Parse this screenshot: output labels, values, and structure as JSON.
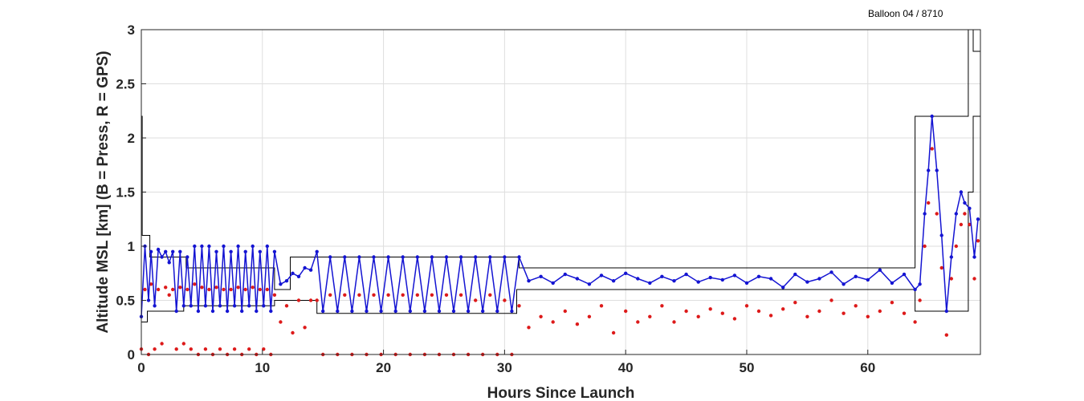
{
  "chart_data": {
    "type": "scatter",
    "title": "",
    "corner_label": "Balloon 04 / 8710",
    "xlabel": "Hours Since Launch",
    "ylabel": "Altitude MSL [km]    (B = Press, R = GPS)",
    "xlim": [
      0,
      69.3
    ],
    "ylim": [
      0,
      3
    ],
    "xticks": [
      0,
      10,
      20,
      30,
      40,
      50,
      60
    ],
    "yticks": [
      0,
      0.5,
      1,
      1.5,
      2,
      2.5,
      3
    ],
    "xtick_labels": [
      "0",
      "10",
      "20",
      "30",
      "40",
      "50",
      "60"
    ],
    "ytick_labels": [
      "0",
      "0.5",
      "1",
      "1.5",
      "2",
      "2.5",
      "3"
    ],
    "grid": true,
    "colors": {
      "pressure": "#1414d2",
      "gps": "#dd1a1a",
      "envelope": "#000000",
      "grid": "#dedede",
      "axis": "#262626"
    },
    "envelope": {
      "upper": [
        [
          0,
          2.2
        ],
        [
          0.07,
          2.2
        ],
        [
          0.07,
          1.1
        ],
        [
          0.7,
          1.1
        ],
        [
          0.7,
          0.9
        ],
        [
          3.7,
          0.9
        ],
        [
          3.7,
          0.8
        ],
        [
          11,
          0.8
        ],
        [
          11,
          0.6
        ],
        [
          12.3,
          0.6
        ],
        [
          12.3,
          0.9
        ],
        [
          31.2,
          0.9
        ],
        [
          31.2,
          0.8
        ],
        [
          63.9,
          0.8
        ],
        [
          63.9,
          2.2
        ],
        [
          68.3,
          2.2
        ],
        [
          68.3,
          3
        ]
      ],
      "lower": [
        [
          0,
          0.3
        ],
        [
          0.5,
          0.3
        ],
        [
          0.5,
          0.4
        ],
        [
          3.5,
          0.4
        ],
        [
          3.5,
          0.45
        ],
        [
          11,
          0.45
        ],
        [
          11,
          0.5
        ],
        [
          14.5,
          0.5
        ],
        [
          14.5,
          0.38
        ],
        [
          31,
          0.38
        ],
        [
          31,
          0.6
        ],
        [
          63.9,
          0.6
        ],
        [
          63.9,
          0.4
        ],
        [
          68.3,
          0.4
        ],
        [
          68.3,
          1.5
        ],
        [
          68.7,
          1.5
        ],
        [
          68.7,
          2.2
        ],
        [
          69.3,
          2.2
        ]
      ],
      "extra": [
        [
          68.7,
          3
        ],
        [
          68.7,
          2.8
        ],
        [
          69.3,
          2.8
        ]
      ]
    },
    "series": [
      {
        "key": "pressure",
        "x": [
          0,
          0.3,
          0.6,
          0.8,
          1.1,
          1.4,
          1.7,
          2.0,
          2.3,
          2.6,
          2.9,
          3.2,
          3.5,
          3.8,
          4.1,
          4.4,
          4.7,
          5.0,
          5.3,
          5.6,
          5.9,
          6.2,
          6.5,
          6.8,
          7.1,
          7.4,
          7.7,
          8.0,
          8.3,
          8.6,
          8.9,
          9.2,
          9.5,
          9.8,
          10.1,
          10.4,
          10.7,
          11.0,
          11.5,
          12.0,
          12.5,
          13.0,
          13.5,
          14.0,
          14.5,
          15.0,
          15.6,
          16.2,
          16.8,
          17.4,
          18.0,
          18.6,
          19.2,
          19.8,
          20.4,
          21.0,
          21.6,
          22.2,
          22.8,
          23.4,
          24.0,
          24.6,
          25.2,
          25.8,
          26.4,
          27.0,
          27.6,
          28.2,
          28.8,
          29.4,
          30.0,
          30.6,
          31.2,
          32.0,
          33.0,
          34.0,
          35.0,
          36.0,
          37.0,
          38.0,
          39.0,
          40.0,
          41.0,
          42.0,
          43.0,
          44.0,
          45.0,
          46.0,
          47.0,
          48.0,
          49.0,
          50.0,
          51.0,
          52.0,
          53.0,
          54.0,
          55.0,
          56.0,
          57.0,
          58.0,
          59.0,
          60.0,
          61.0,
          62.0,
          63.0,
          63.9,
          64.3,
          64.7,
          65.0,
          65.3,
          65.7,
          66.1,
          66.5,
          66.9,
          67.3,
          67.7,
          68.0,
          68.4,
          68.8,
          69.1
        ],
        "y": [
          0.35,
          1.0,
          0.5,
          0.95,
          0.45,
          0.97,
          0.9,
          0.95,
          0.85,
          0.95,
          0.4,
          0.95,
          0.45,
          0.9,
          0.45,
          1.0,
          0.4,
          1.0,
          0.45,
          1.0,
          0.4,
          0.95,
          0.45,
          1.0,
          0.4,
          0.95,
          0.45,
          1.0,
          0.4,
          0.95,
          0.45,
          1.0,
          0.4,
          0.95,
          0.45,
          1.0,
          0.4,
          0.95,
          0.65,
          0.68,
          0.75,
          0.72,
          0.8,
          0.78,
          0.95,
          0.4,
          0.9,
          0.4,
          0.9,
          0.4,
          0.9,
          0.4,
          0.9,
          0.4,
          0.9,
          0.4,
          0.9,
          0.4,
          0.9,
          0.4,
          0.9,
          0.4,
          0.9,
          0.4,
          0.9,
          0.4,
          0.9,
          0.4,
          0.9,
          0.4,
          0.9,
          0.4,
          0.9,
          0.68,
          0.72,
          0.66,
          0.74,
          0.7,
          0.65,
          0.73,
          0.68,
          0.75,
          0.7,
          0.66,
          0.72,
          0.68,
          0.74,
          0.67,
          0.71,
          0.69,
          0.73,
          0.66,
          0.72,
          0.7,
          0.62,
          0.74,
          0.67,
          0.7,
          0.76,
          0.65,
          0.72,
          0.69,
          0.78,
          0.66,
          0.74,
          0.6,
          0.65,
          1.3,
          1.7,
          2.2,
          1.7,
          1.1,
          0.4,
          0.9,
          1.3,
          1.5,
          1.4,
          1.35,
          0.9,
          1.25
        ]
      },
      {
        "key": "gps",
        "x": [
          0,
          0.3,
          0.6,
          0.8,
          1.1,
          1.4,
          1.7,
          2.0,
          2.3,
          2.6,
          2.9,
          3.2,
          3.5,
          3.8,
          4.1,
          4.4,
          4.7,
          5.0,
          5.3,
          5.6,
          5.9,
          6.2,
          6.5,
          6.8,
          7.1,
          7.4,
          7.7,
          8.0,
          8.3,
          8.6,
          8.9,
          9.2,
          9.5,
          9.8,
          10.1,
          10.4,
          10.7,
          11.0,
          11.5,
          12.0,
          12.5,
          13.0,
          13.5,
          14.0,
          14.5,
          15.0,
          15.6,
          16.2,
          16.8,
          17.4,
          18.0,
          18.6,
          19.2,
          19.8,
          20.4,
          21.0,
          21.6,
          22.2,
          22.8,
          23.4,
          24.0,
          24.6,
          25.2,
          25.8,
          26.4,
          27.0,
          27.6,
          28.2,
          28.8,
          29.4,
          30.0,
          30.6,
          31.2,
          32.0,
          33.0,
          34.0,
          35.0,
          36.0,
          37.0,
          38.0,
          39.0,
          40.0,
          41.0,
          42.0,
          43.0,
          44.0,
          45.0,
          46.0,
          47.0,
          48.0,
          49.0,
          50.0,
          51.0,
          52.0,
          53.0,
          54.0,
          55.0,
          56.0,
          57.0,
          58.0,
          59.0,
          60.0,
          61.0,
          62.0,
          63.0,
          63.9,
          64.3,
          64.7,
          65.0,
          65.3,
          65.7,
          66.1,
          66.5,
          66.9,
          67.3,
          67.7,
          68.0,
          68.4,
          68.8,
          69.1
        ],
        "y": [
          0.05,
          0.6,
          0.0,
          0.65,
          0.05,
          0.6,
          0.1,
          0.62,
          0.55,
          0.6,
          0.05,
          0.62,
          0.1,
          0.6,
          0.05,
          0.65,
          0.0,
          0.62,
          0.05,
          0.6,
          0.0,
          0.62,
          0.05,
          0.6,
          0.0,
          0.6,
          0.05,
          0.62,
          0.0,
          0.6,
          0.05,
          0.62,
          0.0,
          0.6,
          0.05,
          0.6,
          0.0,
          0.55,
          0.3,
          0.45,
          0.2,
          0.5,
          0.25,
          0.5,
          0.5,
          0.0,
          0.55,
          0.0,
          0.55,
          0.0,
          0.55,
          0.0,
          0.55,
          0.0,
          0.55,
          0.0,
          0.55,
          0.0,
          0.55,
          0.0,
          0.55,
          0.0,
          0.55,
          0.0,
          0.55,
          0.0,
          0.5,
          0.0,
          0.55,
          0.0,
          0.5,
          0.0,
          0.45,
          0.25,
          0.35,
          0.3,
          0.4,
          0.28,
          0.35,
          0.45,
          0.2,
          0.4,
          0.3,
          0.35,
          0.45,
          0.3,
          0.4,
          0.35,
          0.42,
          0.38,
          0.33,
          0.45,
          0.4,
          0.36,
          0.42,
          0.48,
          0.35,
          0.4,
          0.5,
          0.38,
          0.45,
          0.35,
          0.4,
          0.48,
          0.38,
          0.3,
          0.5,
          1.0,
          1.4,
          1.9,
          1.3,
          0.8,
          0.18,
          0.7,
          1.0,
          1.2,
          1.3,
          1.2,
          0.7,
          1.05
        ]
      }
    ]
  }
}
